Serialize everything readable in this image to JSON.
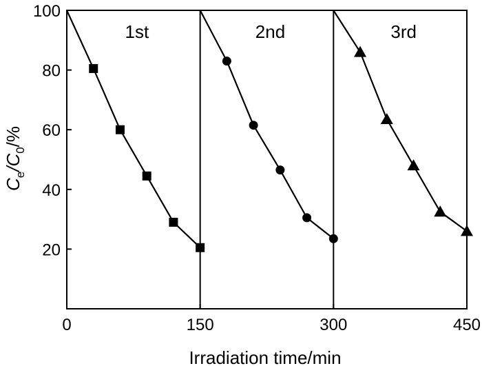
{
  "chart_data": {
    "type": "line",
    "xlabel": "Irradiation time/min",
    "ylabel_parts": [
      "C",
      "e",
      "/C",
      "0",
      "/%"
    ],
    "xlim": [
      0,
      450
    ],
    "ylim": [
      0,
      100
    ],
    "xticks": [
      0,
      150,
      300,
      450
    ],
    "yticks": [
      20,
      40,
      60,
      80,
      100
    ],
    "dividers": [
      150,
      300
    ],
    "grid": false,
    "series": [
      {
        "label": "1st",
        "marker": "square",
        "x": [
          0,
          30,
          60,
          90,
          120,
          150
        ],
        "y": [
          100,
          80.5,
          60,
          44.5,
          29,
          20.5
        ]
      },
      {
        "label": "2nd",
        "marker": "circle",
        "x": [
          150,
          180,
          210,
          240,
          270,
          300
        ],
        "y": [
          100,
          83,
          61.5,
          46.5,
          30.5,
          23.5
        ]
      },
      {
        "label": "3rd",
        "marker": "triangle",
        "x": [
          300,
          330,
          360,
          390,
          420,
          450
        ],
        "y": [
          100,
          86,
          63.5,
          48,
          32.5,
          26
        ]
      }
    ]
  }
}
